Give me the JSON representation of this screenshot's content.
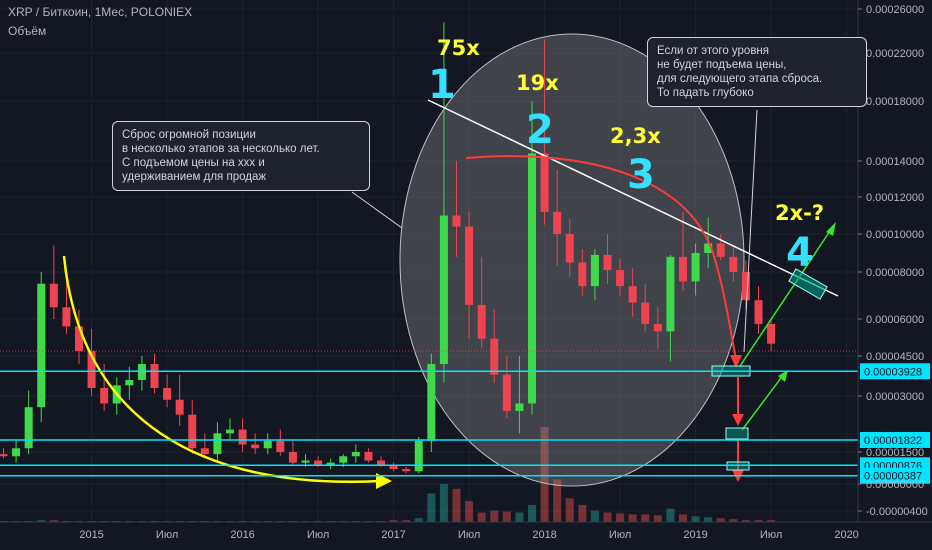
{
  "header": {
    "symbol_line": "XRP / Биткоин, 1Мес, POLONIEX",
    "volume_label": "Объём"
  },
  "colors": {
    "background": "#131722",
    "up": "#3fd94c",
    "down": "#ee4450",
    "volume_up": "#26a69a",
    "volume_down": "#ef5350",
    "level_line": "#00e5ff",
    "trend_line": "#ffffff",
    "curve_yellow": "#ffff00",
    "arc_red": "#ff3b3b",
    "arrow_green": "#34e82e",
    "label_cyan": "#35e0ff",
    "label_yellow": "#ffff33"
  },
  "annotations": {
    "wave_numbers": [
      "1",
      "2",
      "3",
      "4"
    ],
    "multipliers": [
      "75x",
      "19x",
      "2,3x",
      "2x-?"
    ],
    "callout_left": "Сброс огромной позиции\nв несколько этапов за несколько лет.\nС подъемом цены на ххх и\nудерживанием для продаж",
    "callout_right": "Если от этого уровня\nне будет подъема цены,\nдля следующего этапа сброса.\nТо падать глубоко"
  },
  "chart_data": {
    "type": "candlestick",
    "symbol": "XRP/BTC",
    "interval": "1 month",
    "exchange": "POLONIEX",
    "y_scale": "linear",
    "ylim": [
      -4e-06,
      0.00026
    ],
    "y_tick_labels": [
      "0.00026000",
      "0.00022000",
      "0.00018000",
      "0.00014000",
      "0.00012000",
      "0.00010000",
      "0.00008000",
      "0.00006000",
      "0.00004500",
      "0.00003000",
      "0.00001500",
      "0.00000000",
      "-0.00000400"
    ],
    "y_ticks": [
      0.00026,
      0.00022,
      0.00018,
      0.00014,
      0.00012,
      0.0001,
      8e-05,
      6e-05,
      4.5e-05,
      3e-05,
      1.5e-05,
      0.0,
      -4e-06
    ],
    "price_levels": [
      {
        "value": 3.928e-05,
        "label": "0.00003928"
      },
      {
        "value": 1.822e-05,
        "label": "0.00001822"
      },
      {
        "value": 8.76e-06,
        "label": "0.00000876"
      },
      {
        "value": 3.87e-06,
        "label": "0.00000387"
      }
    ],
    "x_tick_labels": [
      "2015",
      "Июл",
      "2016",
      "Июл",
      "2017",
      "Июл",
      "2018",
      "Июл",
      "2019",
      "Июл",
      "2020"
    ],
    "x_ticks": [
      "2015-01",
      "2015-07",
      "2016-01",
      "2016-07",
      "2017-01",
      "2017-07",
      "2018-01",
      "2018-07",
      "2019-01",
      "2019-07",
      "2020-01"
    ],
    "ohlc": [
      {
        "t": "2014-03",
        "o": 1.2e-05,
        "h": 1.6e-05,
        "l": 4e-06,
        "c": 1e-05
      },
      {
        "t": "2014-04",
        "o": 1e-05,
        "h": 1.4e-05,
        "l": 8e-06,
        "c": 1.2e-05
      },
      {
        "t": "2014-05",
        "o": 1.2e-05,
        "h": 1.6e-05,
        "l": 1e-05,
        "c": 1.4e-05
      },
      {
        "t": "2014-06",
        "o": 1.4e-05,
        "h": 1.6e-05,
        "l": 1.2e-05,
        "c": 1.3e-05
      },
      {
        "t": "2014-07",
        "o": 1.3e-05,
        "h": 1.8e-05,
        "l": 1e-05,
        "c": 1.6e-05
      },
      {
        "t": "2014-08",
        "o": 1.6e-05,
        "h": 3.2e-05,
        "l": 1.4e-05,
        "c": 2.7e-05
      },
      {
        "t": "2014-09",
        "o": 2.7e-05,
        "h": 8e-05,
        "l": 2.3e-05,
        "c": 7.5e-05
      },
      {
        "t": "2014-10",
        "o": 7.5e-05,
        "h": 9.4e-05,
        "l": 6e-05,
        "c": 6.5e-05
      },
      {
        "t": "2014-11",
        "o": 6.5e-05,
        "h": 7.8e-05,
        "l": 5.4e-05,
        "c": 5.7e-05
      },
      {
        "t": "2014-12",
        "o": 5.7e-05,
        "h": 6.4e-05,
        "l": 4.2e-05,
        "c": 4.7e-05
      },
      {
        "t": "2015-01",
        "o": 4.7e-05,
        "h": 5.6e-05,
        "l": 3e-05,
        "c": 3.3e-05
      },
      {
        "t": "2015-02",
        "o": 3.3e-05,
        "h": 4.2e-05,
        "l": 2.6e-05,
        "c": 2.8e-05
      },
      {
        "t": "2015-03",
        "o": 2.8e-05,
        "h": 3.7e-05,
        "l": 2.5e-05,
        "c": 3.4e-05
      },
      {
        "t": "2015-04",
        "o": 3.4e-05,
        "h": 4.1e-05,
        "l": 2.9e-05,
        "c": 3.6e-05
      },
      {
        "t": "2015-05",
        "o": 3.6e-05,
        "h": 4.5e-05,
        "l": 3.2e-05,
        "c": 4.2e-05
      },
      {
        "t": "2015-06",
        "o": 4.2e-05,
        "h": 4.6e-05,
        "l": 3.1e-05,
        "c": 3.3e-05
      },
      {
        "t": "2015-07",
        "o": 3.3e-05,
        "h": 3.8e-05,
        "l": 2.7e-05,
        "c": 2.9e-05
      },
      {
        "t": "2015-08",
        "o": 2.9e-05,
        "h": 3.8e-05,
        "l": 2.2e-05,
        "c": 2.5e-05
      },
      {
        "t": "2015-09",
        "o": 2.5e-05,
        "h": 2.9e-05,
        "l": 1.4e-05,
        "c": 1.6e-05
      },
      {
        "t": "2015-10",
        "o": 1.6e-05,
        "h": 2e-05,
        "l": 1.2e-05,
        "c": 1.4e-05
      },
      {
        "t": "2015-11",
        "o": 1.4e-05,
        "h": 2.3e-05,
        "l": 1.1e-05,
        "c": 2e-05
      },
      {
        "t": "2015-12",
        "o": 2e-05,
        "h": 2.4e-05,
        "l": 1.8e-05,
        "c": 2.1e-05
      },
      {
        "t": "2016-01",
        "o": 2.1e-05,
        "h": 2.4e-05,
        "l": 1.5e-05,
        "c": 1.7e-05
      },
      {
        "t": "2016-02",
        "o": 1.7e-05,
        "h": 2e-05,
        "l": 1.4e-05,
        "c": 1.6e-05
      },
      {
        "t": "2016-03",
        "o": 1.6e-05,
        "h": 2e-05,
        "l": 1.4e-05,
        "c": 1.8e-05
      },
      {
        "t": "2016-04",
        "o": 1.8e-05,
        "h": 2.1e-05,
        "l": 1.3e-05,
        "c": 1.5e-05
      },
      {
        "t": "2016-05",
        "o": 1.5e-05,
        "h": 1.8e-05,
        "l": 9e-06,
        "c": 1e-05
      },
      {
        "t": "2016-06",
        "o": 1e-05,
        "h": 1.4e-05,
        "l": 8e-06,
        "c": 1.1e-05
      },
      {
        "t": "2016-07",
        "o": 1.1e-05,
        "h": 1.3e-05,
        "l": 8e-06,
        "c": 9e-06
      },
      {
        "t": "2016-08",
        "o": 9e-06,
        "h": 1.2e-05,
        "l": 7e-06,
        "c": 1e-05
      },
      {
        "t": "2016-09",
        "o": 1e-05,
        "h": 1.4e-05,
        "l": 8e-06,
        "c": 1.3e-05
      },
      {
        "t": "2016-10",
        "o": 1.3e-05,
        "h": 1.7e-05,
        "l": 1e-05,
        "c": 1.5e-05
      },
      {
        "t": "2016-11",
        "o": 1.5e-05,
        "h": 1.6e-05,
        "l": 1e-05,
        "c": 1.1e-05
      },
      {
        "t": "2016-12",
        "o": 1.1e-05,
        "h": 1.3e-05,
        "l": 8e-06,
        "c": 9e-06
      },
      {
        "t": "2017-01",
        "o": 9e-06,
        "h": 1e-05,
        "l": 6e-06,
        "c": 7e-06
      },
      {
        "t": "2017-02",
        "o": 7e-06,
        "h": 8e-06,
        "l": 5e-06,
        "c": 6e-06
      },
      {
        "t": "2017-03",
        "o": 6e-06,
        "h": 1.9e-05,
        "l": 5e-06,
        "c": 1.8e-05
      },
      {
        "t": "2017-04",
        "o": 1.8e-05,
        "h": 4.6e-05,
        "l": 1.5e-05,
        "c": 4.2e-05
      },
      {
        "t": "2017-05",
        "o": 4.2e-05,
        "h": 0.000248,
        "l": 3.5e-05,
        "c": 0.00011
      },
      {
        "t": "2017-06",
        "o": 0.00011,
        "h": 0.00014,
        "l": 8.8e-05,
        "c": 0.000104
      },
      {
        "t": "2017-07",
        "o": 0.000104,
        "h": 0.000112,
        "l": 5.2e-05,
        "c": 6.6e-05
      },
      {
        "t": "2017-08",
        "o": 6.6e-05,
        "h": 8.8e-05,
        "l": 4.8e-05,
        "c": 5.2e-05
      },
      {
        "t": "2017-09",
        "o": 5.2e-05,
        "h": 6.4e-05,
        "l": 3.5e-05,
        "c": 3.8e-05
      },
      {
        "t": "2017-10",
        "o": 3.8e-05,
        "h": 4.5e-05,
        "l": 2.4e-05,
        "c": 2.6e-05
      },
      {
        "t": "2017-11",
        "o": 2.6e-05,
        "h": 4.5e-05,
        "l": 2e-05,
        "c": 2.8e-05
      },
      {
        "t": "2017-12",
        "o": 2.8e-05,
        "h": 0.00018,
        "l": 2.5e-05,
        "c": 0.000145
      },
      {
        "t": "2018-01",
        "o": 0.000145,
        "h": 0.000232,
        "l": 0.000105,
        "c": 0.000112
      },
      {
        "t": "2018-02",
        "o": 0.000112,
        "h": 0.000135,
        "l": 8.3e-05,
        "c": 0.0001
      },
      {
        "t": "2018-03",
        "o": 0.0001,
        "h": 0.000108,
        "l": 7.8e-05,
        "c": 8.5e-05
      },
      {
        "t": "2018-04",
        "o": 8.5e-05,
        "h": 9.2e-05,
        "l": 7e-05,
        "c": 7.4e-05
      },
      {
        "t": "2018-05",
        "o": 7.4e-05,
        "h": 9.2e-05,
        "l": 6.8e-05,
        "c": 8.9e-05
      },
      {
        "t": "2018-06",
        "o": 8.9e-05,
        "h": 0.0001,
        "l": 7.5e-05,
        "c": 8.1e-05
      },
      {
        "t": "2018-07",
        "o": 8.1e-05,
        "h": 8.7e-05,
        "l": 7e-05,
        "c": 7.4e-05
      },
      {
        "t": "2018-08",
        "o": 7.4e-05,
        "h": 8.2e-05,
        "l": 6.1e-05,
        "c": 6.7e-05
      },
      {
        "t": "2018-09",
        "o": 6.7e-05,
        "h": 7.5e-05,
        "l": 5.5e-05,
        "c": 5.8e-05
      },
      {
        "t": "2018-10",
        "o": 5.8e-05,
        "h": 6.5e-05,
        "l": 4.8e-05,
        "c": 5.5e-05
      },
      {
        "t": "2018-11",
        "o": 5.5e-05,
        "h": 8.9e-05,
        "l": 4.3e-05,
        "c": 8.8e-05
      },
      {
        "t": "2018-12",
        "o": 8.8e-05,
        "h": 0.000112,
        "l": 7.2e-05,
        "c": 7.6e-05
      },
      {
        "t": "2019-01",
        "o": 7.6e-05,
        "h": 9.5e-05,
        "l": 7e-05,
        "c": 9e-05
      },
      {
        "t": "2019-02",
        "o": 9e-05,
        "h": 0.000109,
        "l": 8.2e-05,
        "c": 9.5e-05
      },
      {
        "t": "2019-03",
        "o": 9.5e-05,
        "h": 0.0001,
        "l": 8.6e-05,
        "c": 8.8e-05
      },
      {
        "t": "2019-04",
        "o": 8.8e-05,
        "h": 9.3e-05,
        "l": 7.6e-05,
        "c": 8e-05
      },
      {
        "t": "2019-05",
        "o": 8e-05,
        "h": 8.6e-05,
        "l": 6.4e-05,
        "c": 6.8e-05
      },
      {
        "t": "2019-06",
        "o": 6.8e-05,
        "h": 7.4e-05,
        "l": 5.4e-05,
        "c": 5.8e-05
      },
      {
        "t": "2019-07",
        "o": 5.8e-05,
        "h": 6e-05,
        "l": 4.7e-05,
        "c": 5e-05
      }
    ],
    "volume": [
      1,
      1,
      1,
      1,
      1,
      1,
      2,
      2,
      1,
      1,
      1,
      1,
      1,
      1,
      1,
      1,
      1,
      1,
      1,
      1,
      1,
      1,
      1,
      1,
      1,
      1,
      1,
      1,
      1,
      1,
      1,
      1,
      1,
      1,
      2,
      2,
      4,
      30,
      40,
      35,
      22,
      10,
      12,
      11,
      10,
      18,
      100,
      45,
      25,
      18,
      12,
      10,
      9,
      8,
      8,
      7,
      14,
      8,
      6,
      5,
      4,
      3,
      2,
      2,
      2
    ]
  }
}
